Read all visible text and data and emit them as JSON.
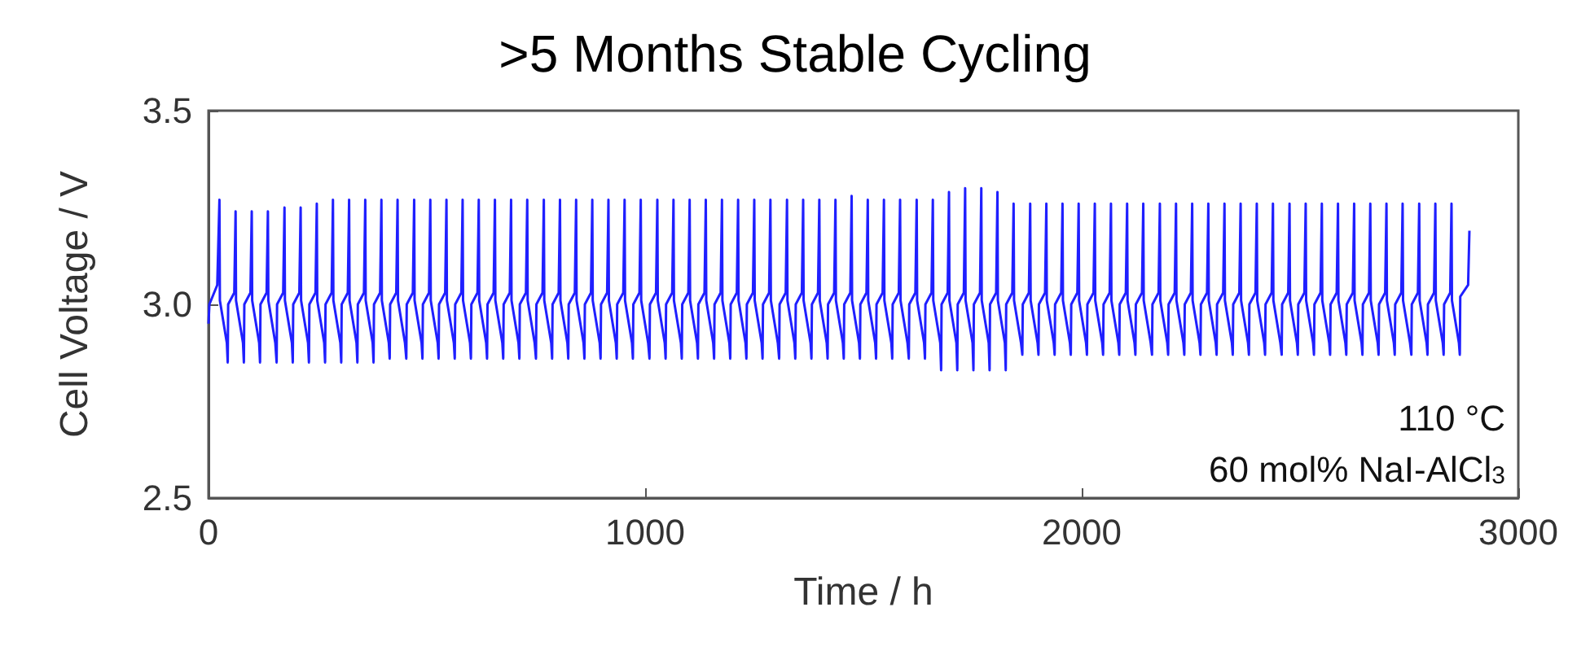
{
  "chart_data": {
    "type": "line",
    "title": ">5 Months Stable Cycling",
    "xlabel": "Time / h",
    "ylabel": "Cell Voltage / V",
    "xlim": [
      0,
      3000
    ],
    "xticks": [
      0,
      1000,
      2000,
      3000
    ],
    "ylim": [
      2.5,
      3.5
    ],
    "yticks": [
      2.5,
      {
        "value": 3,
        "label": "3.0"
      },
      3.5
    ],
    "grid": false,
    "marker": "none",
    "line_style": "solid",
    "annotations": [
      "110 °C",
      "60 mol% NaI-AlCl$_{3}$"
    ],
    "series": [
      {
        "color": "#1f1fff",
        "x": [
          0,
          2,
          20,
          25,
          26,
          42,
          44,
          45,
          59,
          62,
          63,
          79,
          81,
          82,
          96,
          99,
          100,
          116,
          118,
          119,
          133,
          136,
          137,
          153,
          156,
          157,
          171,
          174,
          175,
          191,
          193,
          194,
          208,
          211,
          212,
          228,
          230,
          231,
          245,
          248,
          249,
          265,
          267,
          268,
          282,
          285,
          286,
          302,
          304,
          305,
          319,
          322,
          323,
          339,
          341,
          342,
          356,
          359,
          360,
          376,
          378,
          379,
          393,
          396,
          397,
          413,
          415,
          416,
          430,
          433,
          434,
          450,
          453,
          454,
          468,
          471,
          472,
          488,
          490,
          491,
          505,
          508,
          509,
          525,
          527,
          528,
          542,
          545,
          546,
          562,
          564,
          565,
          579,
          582,
          583,
          599,
          601,
          602,
          616,
          619,
          620,
          636,
          638,
          639,
          653,
          656,
          657,
          673,
          675,
          676,
          690,
          693,
          694,
          710,
          712,
          713,
          727,
          730,
          731,
          747,
          750,
          751,
          765,
          768,
          769,
          785,
          787,
          788,
          802,
          805,
          806,
          822,
          824,
          825,
          839,
          842,
          843,
          859,
          861,
          862,
          876,
          879,
          880,
          896,
          898,
          899,
          913,
          916,
          917,
          933,
          935,
          936,
          950,
          953,
          954,
          970,
          972,
          973,
          987,
          990,
          991,
          1007,
          1010,
          1011,
          1025,
          1028,
          1029,
          1045,
          1047,
          1048,
          1062,
          1065,
          1066,
          1082,
          1084,
          1085,
          1099,
          1102,
          1103,
          1119,
          1121,
          1122,
          1136,
          1139,
          1140,
          1156,
          1158,
          1159,
          1173,
          1176,
          1177,
          1193,
          1195,
          1196,
          1210,
          1213,
          1214,
          1230,
          1232,
          1233,
          1247,
          1250,
          1251,
          1267,
          1269,
          1270,
          1284,
          1287,
          1288,
          1304,
          1307,
          1308,
          1322,
          1325,
          1326,
          1342,
          1344,
          1345,
          1359,
          1362,
          1363,
          1379,
          1381,
          1382,
          1396,
          1399,
          1400,
          1416,
          1418,
          1419,
          1433,
          1436,
          1437,
          1453,
          1455,
          1456,
          1470,
          1473,
          1474,
          1490,
          1492,
          1493,
          1507,
          1510,
          1511,
          1527,
          1529,
          1530,
          1544,
          1547,
          1548,
          1564,
          1566,
          1567,
          1581,
          1584,
          1585,
          1601,
          1604,
          1605,
          1619,
          1622,
          1623,
          1639,
          1641,
          1642,
          1656,
          1659,
          1660,
          1676,
          1678,
          1679,
          1693,
          1696,
          1697,
          1713,
          1715,
          1716,
          1730,
          1733,
          1734,
          1750,
          1752,
          1753,
          1767,
          1770,
          1771,
          1787,
          1789,
          1790,
          1804,
          1807,
          1808,
          1824,
          1826,
          1827,
          1841,
          1844,
          1845,
          1861,
          1864,
          1865,
          1879,
          1882,
          1883,
          1899,
          1901,
          1902,
          1916,
          1919,
          1920,
          1936,
          1938,
          1939,
          1953,
          1956,
          1957,
          1973,
          1975,
          1976,
          1990,
          1993,
          1994,
          2010,
          2012,
          2013,
          2027,
          2030,
          2031,
          2047,
          2049,
          2050,
          2064,
          2067,
          2068,
          2084,
          2086,
          2087,
          2101,
          2104,
          2105,
          2121,
          2123,
          2124,
          2138,
          2141,
          2142,
          2158,
          2161,
          2162,
          2176,
          2179,
          2180,
          2196,
          2198,
          2199,
          2213,
          2216,
          2217,
          2233,
          2235,
          2236,
          2250,
          2253,
          2254,
          2270,
          2272,
          2273,
          2287,
          2290,
          2291,
          2307,
          2309,
          2310,
          2324,
          2327,
          2328,
          2344,
          2346,
          2347,
          2361,
          2364,
          2365,
          2381,
          2383,
          2384,
          2398,
          2401,
          2402,
          2418,
          2420,
          2421,
          2435,
          2438,
          2439,
          2455,
          2458,
          2459,
          2473,
          2476,
          2477,
          2493,
          2495,
          2496,
          2510,
          2513,
          2514,
          2530,
          2532,
          2533,
          2547,
          2550,
          2551,
          2567,
          2569,
          2570,
          2584,
          2587,
          2588,
          2604,
          2606,
          2607,
          2621,
          2624,
          2625,
          2641,
          2643,
          2644,
          2658,
          2661,
          2662,
          2678,
          2680,
          2681,
          2695,
          2698,
          2699,
          2715,
          2717,
          2718,
          2732,
          2735,
          2736,
          2752,
          2755,
          2756,
          2770,
          2773,
          2774,
          2790,
          2792,
          2793,
          2807,
          2810,
          2811,
          2827,
          2829,
          2830,
          2844,
          2847,
          2848,
          2864,
          2866,
          2867,
          2885,
          2888
        ],
        "values": [
          2.95,
          3.0,
          3.05,
          3.27,
          3.01,
          2.9,
          2.85,
          3.0,
          3.03,
          3.24,
          3.01,
          2.9,
          2.85,
          3.0,
          3.03,
          3.24,
          3.01,
          2.9,
          2.85,
          3.0,
          3.03,
          3.24,
          3.01,
          2.9,
          2.85,
          3.0,
          3.03,
          3.25,
          3.01,
          2.9,
          2.85,
          3.0,
          3.03,
          3.25,
          3.01,
          2.9,
          2.85,
          3.0,
          3.03,
          3.26,
          3.01,
          2.9,
          2.85,
          3.0,
          3.03,
          3.27,
          3.01,
          2.9,
          2.85,
          3.0,
          3.03,
          3.27,
          3.01,
          2.9,
          2.85,
          3.0,
          3.03,
          3.27,
          3.01,
          2.9,
          2.85,
          3.0,
          3.03,
          3.27,
          3.01,
          2.9,
          2.86,
          3.0,
          3.03,
          3.27,
          3.01,
          2.9,
          2.86,
          3.0,
          3.03,
          3.27,
          3.01,
          2.9,
          2.86,
          3.0,
          3.03,
          3.27,
          3.01,
          2.9,
          2.86,
          3.0,
          3.03,
          3.27,
          3.01,
          2.9,
          2.86,
          3.0,
          3.03,
          3.27,
          3.01,
          2.9,
          2.86,
          3.0,
          3.03,
          3.27,
          3.01,
          2.9,
          2.86,
          3.0,
          3.03,
          3.27,
          3.01,
          2.9,
          2.86,
          3.0,
          3.03,
          3.27,
          3.01,
          2.9,
          2.86,
          3.0,
          3.03,
          3.27,
          3.01,
          2.9,
          2.86,
          3.0,
          3.03,
          3.27,
          3.01,
          2.9,
          2.86,
          3.0,
          3.03,
          3.27,
          3.01,
          2.9,
          2.86,
          3.0,
          3.03,
          3.27,
          3.01,
          2.9,
          2.86,
          3.0,
          3.03,
          3.27,
          3.01,
          2.9,
          2.86,
          3.0,
          3.03,
          3.27,
          3.01,
          2.9,
          2.86,
          3.0,
          3.03,
          3.27,
          3.01,
          2.9,
          2.86,
          3.0,
          3.03,
          3.27,
          3.01,
          2.9,
          2.86,
          3.0,
          3.03,
          3.27,
          3.01,
          2.9,
          2.86,
          3.0,
          3.03,
          3.27,
          3.01,
          2.9,
          2.86,
          3.0,
          3.03,
          3.27,
          3.01,
          2.9,
          2.86,
          3.0,
          3.03,
          3.27,
          3.01,
          2.9,
          2.86,
          3.0,
          3.03,
          3.27,
          3.01,
          2.9,
          2.86,
          3.0,
          3.03,
          3.27,
          3.01,
          2.9,
          2.86,
          3.0,
          3.03,
          3.27,
          3.01,
          2.9,
          2.86,
          3.0,
          3.03,
          3.27,
          3.01,
          2.9,
          2.86,
          3.0,
          3.03,
          3.27,
          3.01,
          2.9,
          2.86,
          3.0,
          3.03,
          3.27,
          3.01,
          2.9,
          2.86,
          3.0,
          3.03,
          3.27,
          3.01,
          2.9,
          2.86,
          3.0,
          3.03,
          3.27,
          3.01,
          2.9,
          2.86,
          3.0,
          3.03,
          3.28,
          3.01,
          2.9,
          2.86,
          3.0,
          3.03,
          3.27,
          3.01,
          2.9,
          2.86,
          3.0,
          3.03,
          3.27,
          3.01,
          2.9,
          2.86,
          3.0,
          3.03,
          3.27,
          3.01,
          2.9,
          2.86,
          3.0,
          3.03,
          3.27,
          3.01,
          2.9,
          2.86,
          3.0,
          3.03,
          3.27,
          3.01,
          2.9,
          2.83,
          3.0,
          3.03,
          3.29,
          3.01,
          2.9,
          2.83,
          3.0,
          3.03,
          3.3,
          3.01,
          2.9,
          2.83,
          3.0,
          3.03,
          3.3,
          3.01,
          2.9,
          2.83,
          3.0,
          3.03,
          3.29,
          3.01,
          2.9,
          2.83,
          3.0,
          3.03,
          3.26,
          3.01,
          2.9,
          2.87,
          3.0,
          3.03,
          3.26,
          3.01,
          2.9,
          2.87,
          3.0,
          3.03,
          3.26,
          3.01,
          2.9,
          2.87,
          3.0,
          3.03,
          3.26,
          3.01,
          2.9,
          2.87,
          3.0,
          3.03,
          3.26,
          3.01,
          2.9,
          2.87,
          3.0,
          3.03,
          3.26,
          3.01,
          2.9,
          2.87,
          3.0,
          3.03,
          3.26,
          3.01,
          2.9,
          2.87,
          3.0,
          3.03,
          3.26,
          3.01,
          2.9,
          2.87,
          3.0,
          3.03,
          3.26,
          3.01,
          2.9,
          2.87,
          3.0,
          3.03,
          3.26,
          3.01,
          2.9,
          2.87,
          3.0,
          3.03,
          3.26,
          3.01,
          2.9,
          2.87,
          3.0,
          3.03,
          3.26,
          3.01,
          2.9,
          2.87,
          3.0,
          3.03,
          3.26,
          3.01,
          2.9,
          2.87,
          3.0,
          3.03,
          3.26,
          3.01,
          2.9,
          2.87,
          3.0,
          3.03,
          3.26,
          3.01,
          2.9,
          2.87,
          3.0,
          3.03,
          3.26,
          3.01,
          2.9,
          2.87,
          3.0,
          3.03,
          3.26,
          3.01,
          2.9,
          2.87,
          3.0,
          3.03,
          3.26,
          3.01,
          2.9,
          2.87,
          3.0,
          3.03,
          3.26,
          3.01,
          2.9,
          2.87,
          3.0,
          3.03,
          3.26,
          3.01,
          2.9,
          2.87,
          3.0,
          3.03,
          3.26,
          3.01,
          2.9,
          2.87,
          3.0,
          3.03,
          3.26,
          3.01,
          2.9,
          2.87,
          3.0,
          3.03,
          3.26,
          3.01,
          2.9,
          2.87,
          3.0,
          3.03,
          3.26,
          3.01,
          2.9,
          2.87,
          3.0,
          3.03,
          3.26,
          3.01,
          2.9,
          2.87,
          3.0,
          3.03,
          3.26,
          3.01,
          2.9,
          2.87,
          3.0,
          3.03,
          3.26,
          3.01,
          2.9,
          2.87,
          3.0,
          3.03,
          3.26,
          3.01,
          2.9,
          2.87,
          3.02,
          3.05,
          3.19
        ]
      }
    ]
  }
}
